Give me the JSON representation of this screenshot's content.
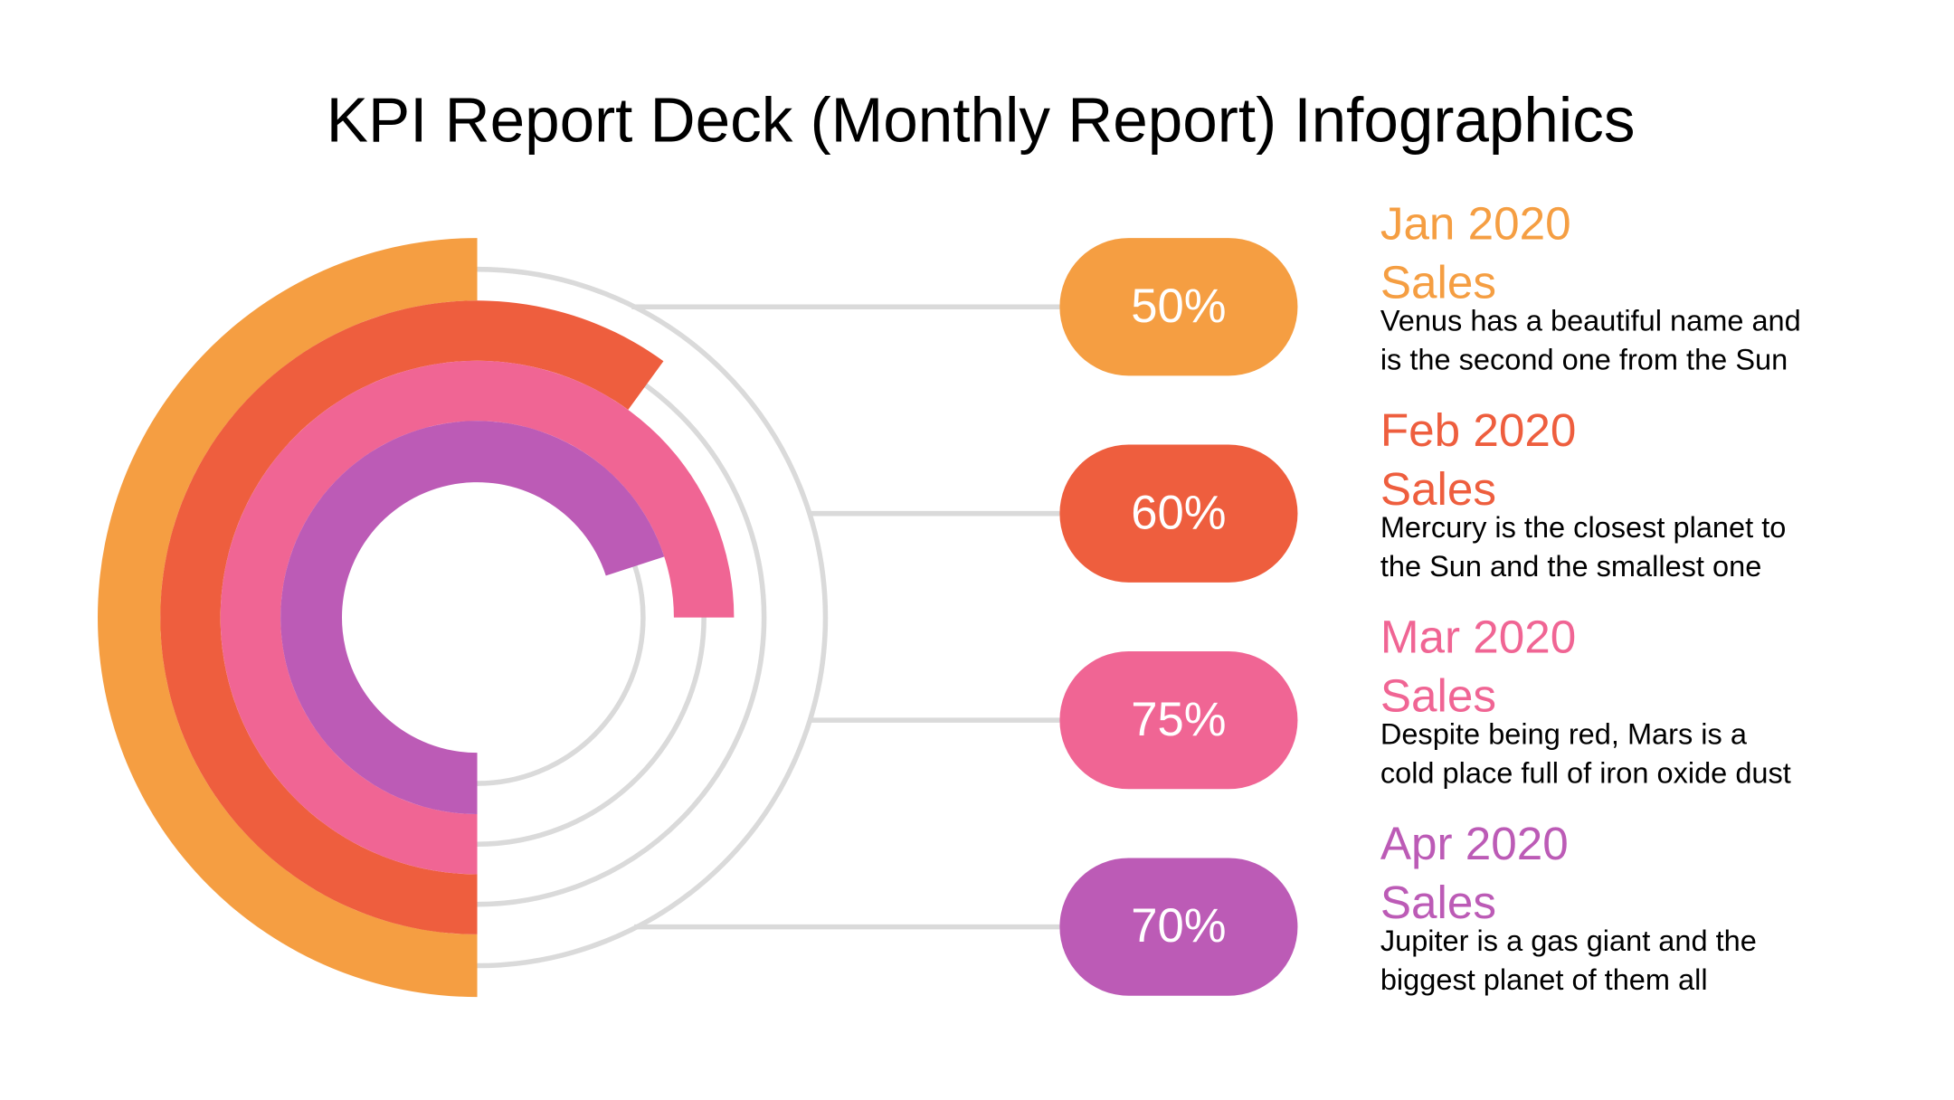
{
  "title": "KPI Report Deck (Monthly Report) Infographics",
  "colors": {
    "track": "#dadada",
    "text": "#000000"
  },
  "chart_data": {
    "type": "radial-bar",
    "unit": "%",
    "categories": [
      "Jan 2020 Sales",
      "Feb 2020 Sales",
      "Mar 2020 Sales",
      "Apr 2020 Sales"
    ],
    "values": [
      50,
      60,
      75,
      70
    ],
    "colors": [
      "#f59e42",
      "#ee5e3e",
      "#f06594",
      "#bc5bb6"
    ]
  },
  "items": [
    {
      "value_label": "50%",
      "month": "Jan 2020",
      "metric": "Sales",
      "desc1": "Venus has a beautiful name and",
      "desc2": "is the second one from the Sun",
      "color": "#f59e42"
    },
    {
      "value_label": "60%",
      "month": "Feb 2020",
      "metric": "Sales",
      "desc1": "Mercury is the closest planet to",
      "desc2": "the Sun and the smallest one",
      "color": "#ee5e3e"
    },
    {
      "value_label": "75%",
      "month": "Mar 2020",
      "metric": "Sales",
      "desc1": "Despite being red, Mars is a",
      "desc2": "cold place full of iron oxide dust",
      "color": "#f06594"
    },
    {
      "value_label": "70%",
      "month": "Apr 2020",
      "metric": "Sales",
      "desc1": "Jupiter is a gas giant and the",
      "desc2": "biggest planet of them all",
      "color": "#bc5bb6"
    }
  ]
}
